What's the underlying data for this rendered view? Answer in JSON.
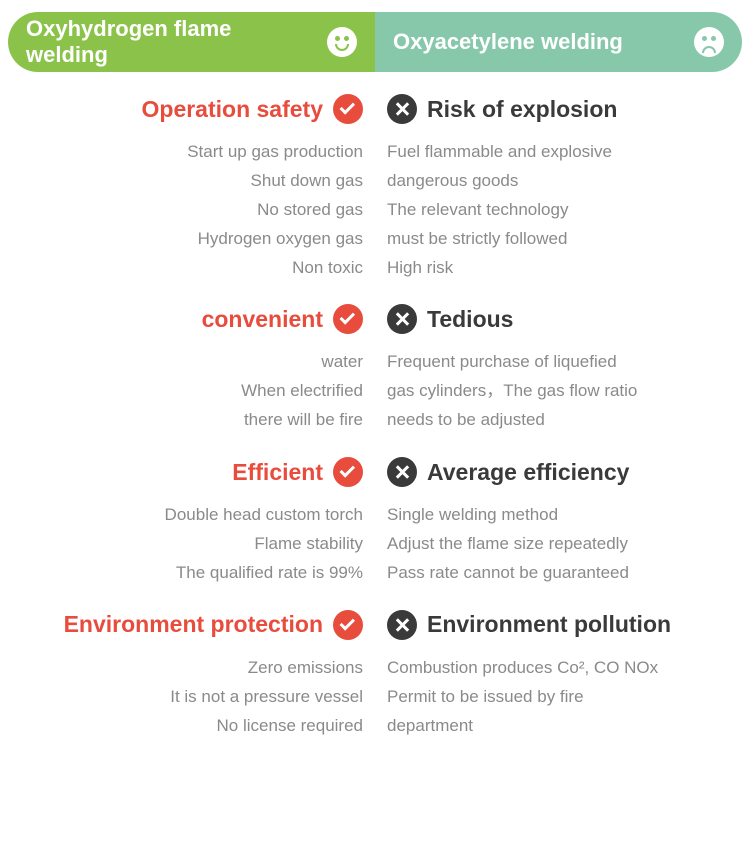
{
  "colors": {
    "header_left_bg": "#8bc34a",
    "header_right_bg": "#87c8ab",
    "accent_red": "#e84c3d",
    "accent_dark": "#3a3a3a",
    "detail_gray": "#8a8a8a",
    "white": "#ffffff"
  },
  "header": {
    "left_title": "Oxyhydrogen flame welding",
    "right_title": "Oxyacetylene welding",
    "left_icon": "happy-face",
    "right_icon": "sad-face"
  },
  "sections": [
    {
      "left_heading": "Operation safety",
      "right_heading": "Risk of explosion",
      "left_details": [
        "Start up gas production",
        "Shut down gas",
        "No stored gas",
        "Hydrogen oxygen gas",
        "Non toxic"
      ],
      "right_details": [
        "Fuel flammable and explosive",
        "dangerous goods",
        "The relevant technology",
        "must be strictly followed",
        "High risk"
      ]
    },
    {
      "left_heading": "convenient",
      "right_heading": "Tedious",
      "left_details": [
        "water",
        "When electrified",
        "there will be fire"
      ],
      "right_details": [
        "Frequent purchase of liquefied",
        "gas cylinders，The gas flow ratio",
        "needs to be adjusted"
      ]
    },
    {
      "left_heading": "Efficient",
      "right_heading": "Average efficiency",
      "left_details": [
        "Double head custom torch",
        "Flame stability",
        "The qualified rate is 99%"
      ],
      "right_details": [
        "Single welding method",
        "Adjust the flame size repeatedly",
        "Pass rate cannot be guaranteed"
      ]
    },
    {
      "left_heading": "Environment protection",
      "right_heading": "Environment pollution",
      "left_details": [
        "Zero emissions",
        "It is not a pressure vessel",
        "No license required"
      ],
      "right_details": [
        "Combustion produces Co², CO NOx",
        "Permit to be issued by fire",
        "department"
      ]
    }
  ]
}
